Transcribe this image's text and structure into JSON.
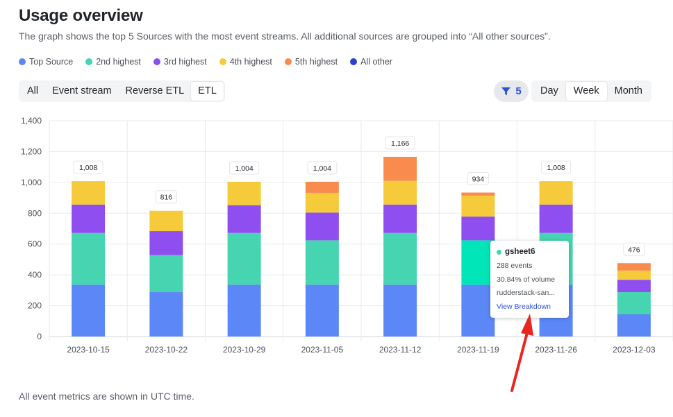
{
  "header": {
    "title": "Usage overview",
    "subtitle": "The graph shows the top 5 Sources with the most event streams. All additional sources are grouped into “All other sources”."
  },
  "legend": [
    {
      "label": "Top Source",
      "color": "#5b87f7"
    },
    {
      "label": "2nd highest",
      "color": "#47d4b0"
    },
    {
      "label": "3rd highest",
      "color": "#8e4ef0"
    },
    {
      "label": "4th highest",
      "color": "#f5cb3c"
    },
    {
      "label": "5th highest",
      "color": "#fa8b4f"
    },
    {
      "label": "All other",
      "color": "#2b3fd0"
    }
  ],
  "source_tabs": [
    {
      "label": "All",
      "active": false
    },
    {
      "label": "Event stream",
      "active": false
    },
    {
      "label": "Reverse ETL",
      "active": false
    },
    {
      "label": "ETL",
      "active": true
    }
  ],
  "filter": {
    "count": "5",
    "icon": "filter-icon"
  },
  "period_tabs": [
    {
      "label": "Day",
      "active": false
    },
    {
      "label": "Week",
      "active": true
    },
    {
      "label": "Month",
      "active": false
    }
  ],
  "chart_data": {
    "type": "bar",
    "stacked": true,
    "categories": [
      "2023-10-15",
      "2023-10-22",
      "2023-10-29",
      "2023-11-05",
      "2023-11-12",
      "2023-11-19",
      "2023-11-26",
      "2023-12-03"
    ],
    "totals": [
      "1,008",
      "816",
      "1,004",
      "1,004",
      "1,166",
      "934",
      "1,008",
      "476"
    ],
    "series": [
      {
        "name": "Top Source",
        "color": "#5b87f7",
        "values": [
          336,
          288,
          336,
          336,
          336,
          336,
          336,
          144
        ]
      },
      {
        "name": "2nd highest",
        "color": "#47d4b0",
        "values": [
          336,
          240,
          336,
          288,
          336,
          288,
          336,
          144
        ]
      },
      {
        "name": "3rd highest",
        "color": "#8e4ef0",
        "values": [
          184,
          156,
          180,
          180,
          184,
          154,
          184,
          80
        ]
      },
      {
        "name": "4th highest",
        "color": "#f5cb3c",
        "values": [
          152,
          132,
          152,
          128,
          154,
          136,
          152,
          60
        ]
      },
      {
        "name": "5th highest",
        "color": "#fa8b4f",
        "values": [
          0,
          0,
          0,
          72,
          156,
          20,
          0,
          48
        ]
      },
      {
        "name": "All other",
        "color": "#2b3fd0",
        "values": [
          0,
          0,
          0,
          0,
          0,
          0,
          0,
          0
        ]
      }
    ],
    "highlight": {
      "category_index": 5,
      "series_index": 1,
      "color": "#00e6b8"
    },
    "yticks": [
      "0",
      "200",
      "400",
      "600",
      "800",
      "1,000",
      "1,200",
      "1,400"
    ],
    "ylim": [
      0,
      1400
    ],
    "grid": true
  },
  "tooltip": {
    "name": "gsheet6",
    "events": "288 events",
    "volume": "30.84% of volume",
    "workspace": "rudderstack-san...",
    "link": "View Breakdown"
  },
  "footer": "All event metrics are shown in UTC time."
}
